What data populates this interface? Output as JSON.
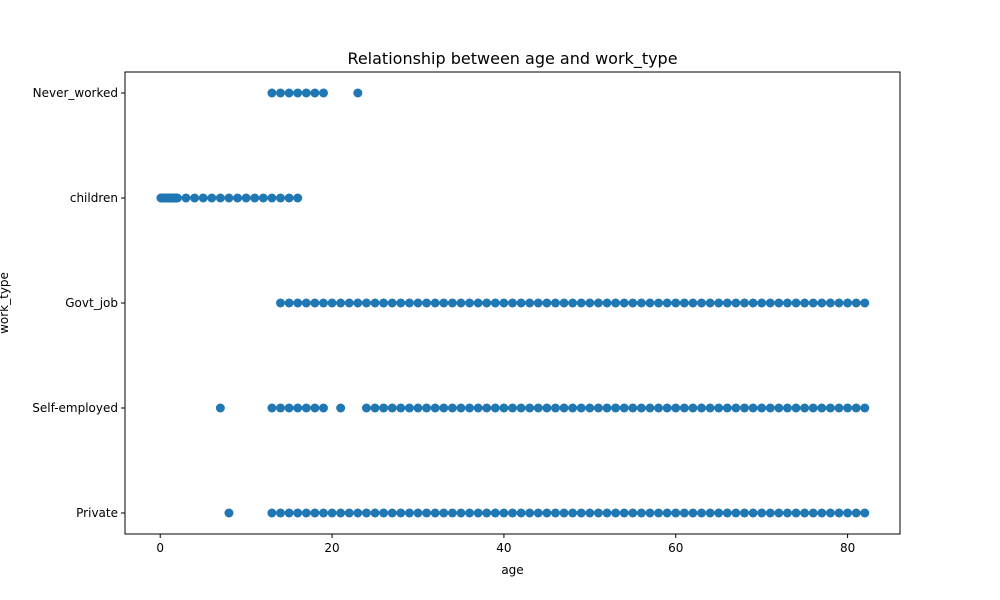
{
  "chart_data": {
    "type": "scatter",
    "title": "Relationship between age and work_type",
    "xlabel": "age",
    "ylabel": "work_type",
    "xlim": [
      -4.1,
      86.1
    ],
    "ylim": [
      -0.2,
      4.2
    ],
    "x_ticks": [
      0,
      20,
      40,
      60,
      80
    ],
    "y_categories": [
      "Private",
      "Self-employed",
      "Govt_job",
      "children",
      "Never_worked"
    ],
    "grid": false,
    "legend": "none",
    "marker_color": "#1f77b4",
    "series": [
      {
        "category": "Never_worked",
        "x": [
          13,
          14,
          15,
          16,
          17,
          18,
          19,
          23
        ]
      },
      {
        "category": "children",
        "x": [
          0.08,
          0.16,
          0.24,
          0.32,
          0.4,
          0.48,
          0.56,
          0.64,
          0.72,
          0.8,
          0.88,
          1.0,
          1.08,
          1.16,
          1.24,
          1.32,
          1.4,
          1.48,
          1.56,
          1.64,
          1.72,
          1.8,
          1.88,
          2,
          3,
          4,
          5,
          6,
          7,
          8,
          9,
          10,
          11,
          12,
          13,
          14,
          15,
          16
        ]
      },
      {
        "category": "Govt_job",
        "x": [
          14,
          15,
          16,
          17,
          18,
          19,
          20,
          21,
          22,
          23,
          24,
          25,
          26,
          27,
          28,
          29,
          30,
          31,
          32,
          33,
          34,
          35,
          36,
          37,
          38,
          39,
          40,
          41,
          42,
          43,
          44,
          45,
          46,
          47,
          48,
          49,
          50,
          51,
          52,
          53,
          54,
          55,
          56,
          57,
          58,
          59,
          60,
          61,
          62,
          63,
          64,
          65,
          66,
          67,
          68,
          69,
          70,
          71,
          72,
          73,
          74,
          75,
          76,
          77,
          78,
          79,
          80,
          81,
          82
        ]
      },
      {
        "category": "Self-employed",
        "x": [
          7,
          13,
          14,
          15,
          16,
          17,
          18,
          19,
          21,
          24,
          25,
          26,
          27,
          28,
          29,
          30,
          31,
          32,
          33,
          34,
          35,
          36,
          37,
          38,
          39,
          40,
          41,
          42,
          43,
          44,
          45,
          46,
          47,
          48,
          49,
          50,
          51,
          52,
          53,
          54,
          55,
          56,
          57,
          58,
          59,
          60,
          61,
          62,
          63,
          64,
          65,
          66,
          67,
          68,
          69,
          70,
          71,
          72,
          73,
          74,
          75,
          76,
          77,
          78,
          79,
          80,
          81,
          82
        ]
      },
      {
        "category": "Private",
        "x": [
          8,
          13,
          14,
          15,
          16,
          17,
          18,
          19,
          20,
          21,
          22,
          23,
          24,
          25,
          26,
          27,
          28,
          29,
          30,
          31,
          32,
          33,
          34,
          35,
          36,
          37,
          38,
          39,
          40,
          41,
          42,
          43,
          44,
          45,
          46,
          47,
          48,
          49,
          50,
          51,
          52,
          53,
          54,
          55,
          56,
          57,
          58,
          59,
          60,
          61,
          62,
          63,
          64,
          65,
          66,
          67,
          68,
          69,
          70,
          71,
          72,
          73,
          74,
          75,
          76,
          77,
          78,
          79,
          80,
          81,
          82
        ]
      }
    ]
  }
}
